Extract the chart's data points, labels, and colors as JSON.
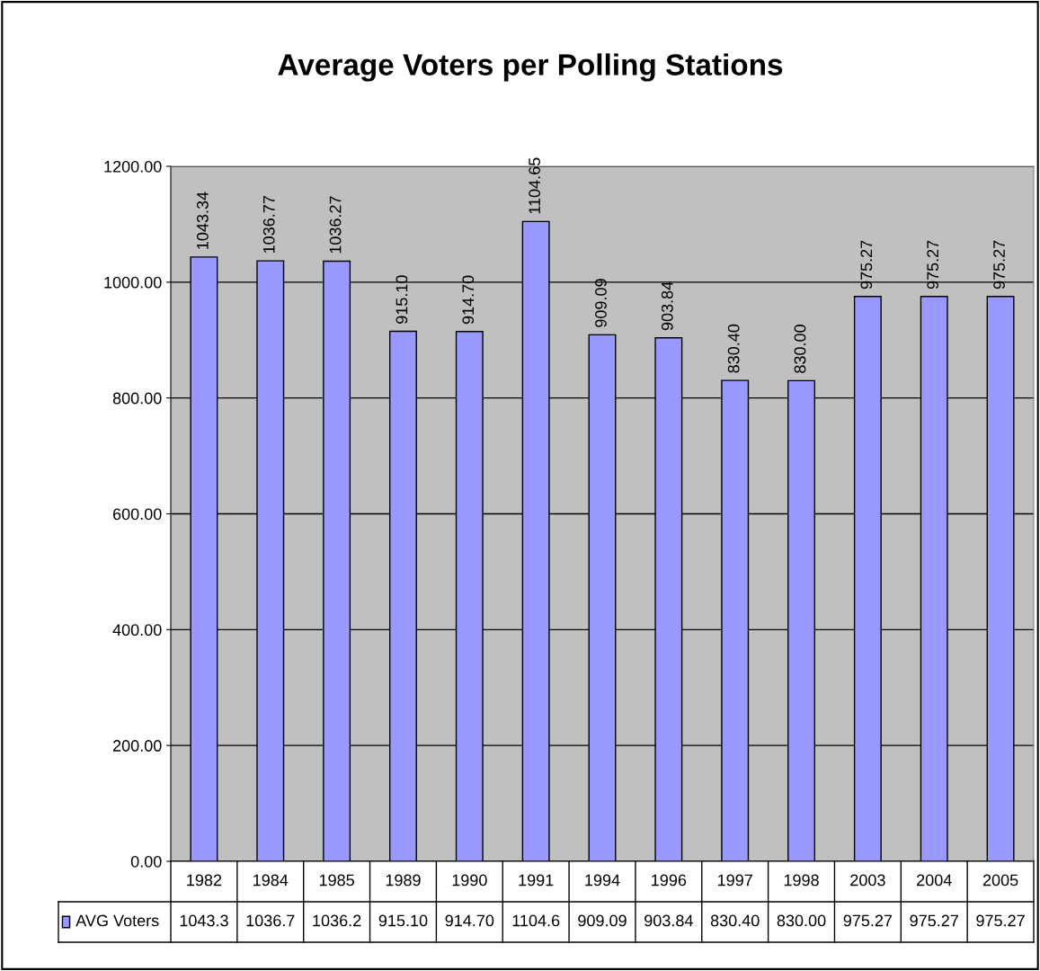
{
  "chart_data": {
    "type": "bar",
    "title": "Average Voters per Polling Stations",
    "categories": [
      "1982",
      "1984",
      "1985",
      "1989",
      "1990",
      "1991",
      "1994",
      "1996",
      "1997",
      "1998",
      "2003",
      "2004",
      "2005"
    ],
    "series": [
      {
        "name": "AVG Voters",
        "color": "#9999ff",
        "values": [
          1043.34,
          1036.77,
          1036.27,
          915.1,
          914.7,
          1104.65,
          909.09,
          903.84,
          830.4,
          830.0,
          975.27,
          975.27,
          975.27
        ],
        "value_labels": [
          "1043.34",
          "1036.77",
          "1036.27",
          "915.10",
          "914.70",
          "1104.65",
          "909.09",
          "903.84",
          "830.40",
          "830.00",
          "975.27",
          "975.27",
          "975.27"
        ]
      }
    ],
    "annotations": [
      "1043.3",
      "1036.7",
      "1036.2",
      "915.10",
      "914.70",
      "1104.6",
      "909.09",
      "903.84",
      "830.40",
      "830.00",
      "975.27",
      "975.27",
      "975.27"
    ],
    "ylim": [
      0,
      1200
    ],
    "yticks": [
      {
        "value": 0,
        "label": "0.00"
      },
      {
        "value": 200,
        "label": "200.00"
      },
      {
        "value": 400,
        "label": "400.00"
      },
      {
        "value": 600,
        "label": "600.00"
      },
      {
        "value": 800,
        "label": "800.00"
      },
      {
        "value": 1000,
        "label": "1000.00"
      },
      {
        "value": 1200,
        "label": "1200.00"
      }
    ],
    "grid": "y",
    "legend": "bottom"
  }
}
